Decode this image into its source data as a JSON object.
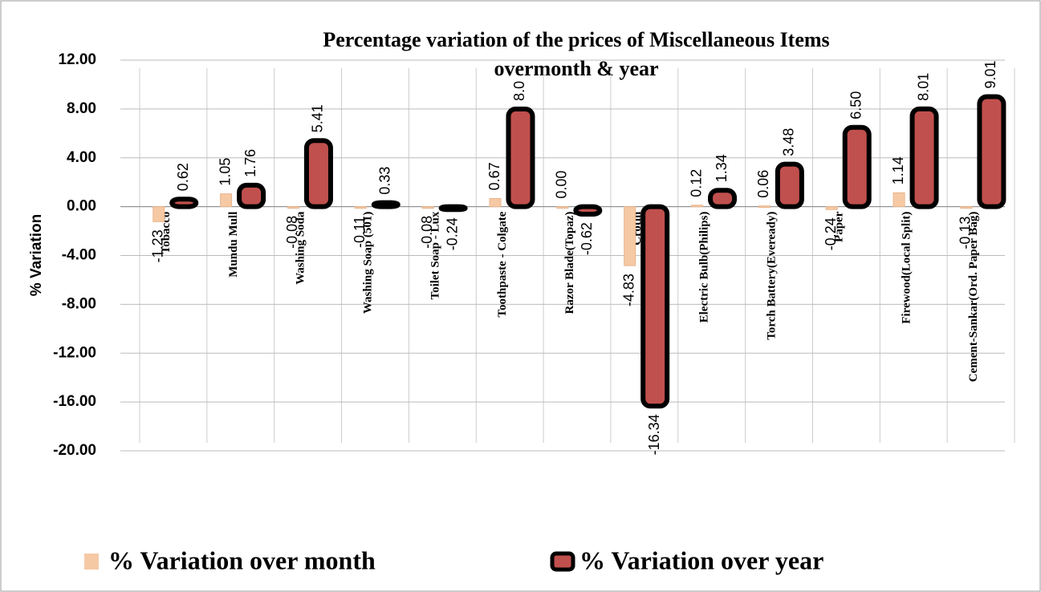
{
  "chart_data": {
    "type": "bar",
    "title": "Percentage variation of the prices of Miscellaneous Items overmonth & year",
    "y_label": "% Variation",
    "categories": [
      "Tobacco",
      "Mundu Mull",
      "Washing Soda",
      "Washing Soap (501)",
      "Toilet Soap - Lux",
      "Toothpaste - Colgate",
      "Razor Blade(Topaz)",
      "Crotin",
      "Electric Bulb(Philips)",
      "Torch Battery(Eveready)",
      "Paper",
      "Firewood(Local Split)",
      "Cement-Sankar(Ord. Paper Bag)"
    ],
    "series": [
      {
        "name": "% Variation over month",
        "color": "#f6c9a5",
        "values": [
          -1.23,
          1.05,
          -0.08,
          -0.11,
          -0.08,
          0.67,
          0.0,
          -4.83,
          0.12,
          0.06,
          -0.24,
          1.14,
          -0.13
        ],
        "value_labels": [
          "-1.23",
          "1.05",
          "-0.08",
          "-0.11",
          "-0.08",
          "0.67",
          "0.00",
          "-4.83",
          "0.12",
          "0.06",
          "-0.24",
          "1.14",
          "-0.13"
        ]
      },
      {
        "name": "% Variation over year",
        "color": "#c0504d",
        "values": [
          0.62,
          1.76,
          5.41,
          0.33,
          -0.24,
          8.0,
          -0.62,
          -16.34,
          1.34,
          3.48,
          6.5,
          8.01,
          9.01
        ],
        "value_labels": [
          "0.62",
          "1.76",
          "5.41",
          "0.33",
          "-0.24",
          "8.0",
          "-0.62",
          "-16.34",
          "1.34",
          "3.48",
          "6.50",
          "8.01",
          "9.01"
        ]
      }
    ],
    "ylim": [
      -20,
      12
    ],
    "yticks": [
      {
        "value": -20,
        "label": "-20.00"
      },
      {
        "value": -16,
        "label": "-16.00"
      },
      {
        "value": -12,
        "label": "-12.00"
      },
      {
        "value": -8,
        "label": "-8.00"
      },
      {
        "value": -4,
        "label": "-4.00"
      },
      {
        "value": 0,
        "label": "0.00"
      },
      {
        "value": 4,
        "label": "4.00"
      },
      {
        "value": 8,
        "label": "8.00"
      },
      {
        "value": 12,
        "label": "12.00"
      }
    ],
    "grid": true
  }
}
